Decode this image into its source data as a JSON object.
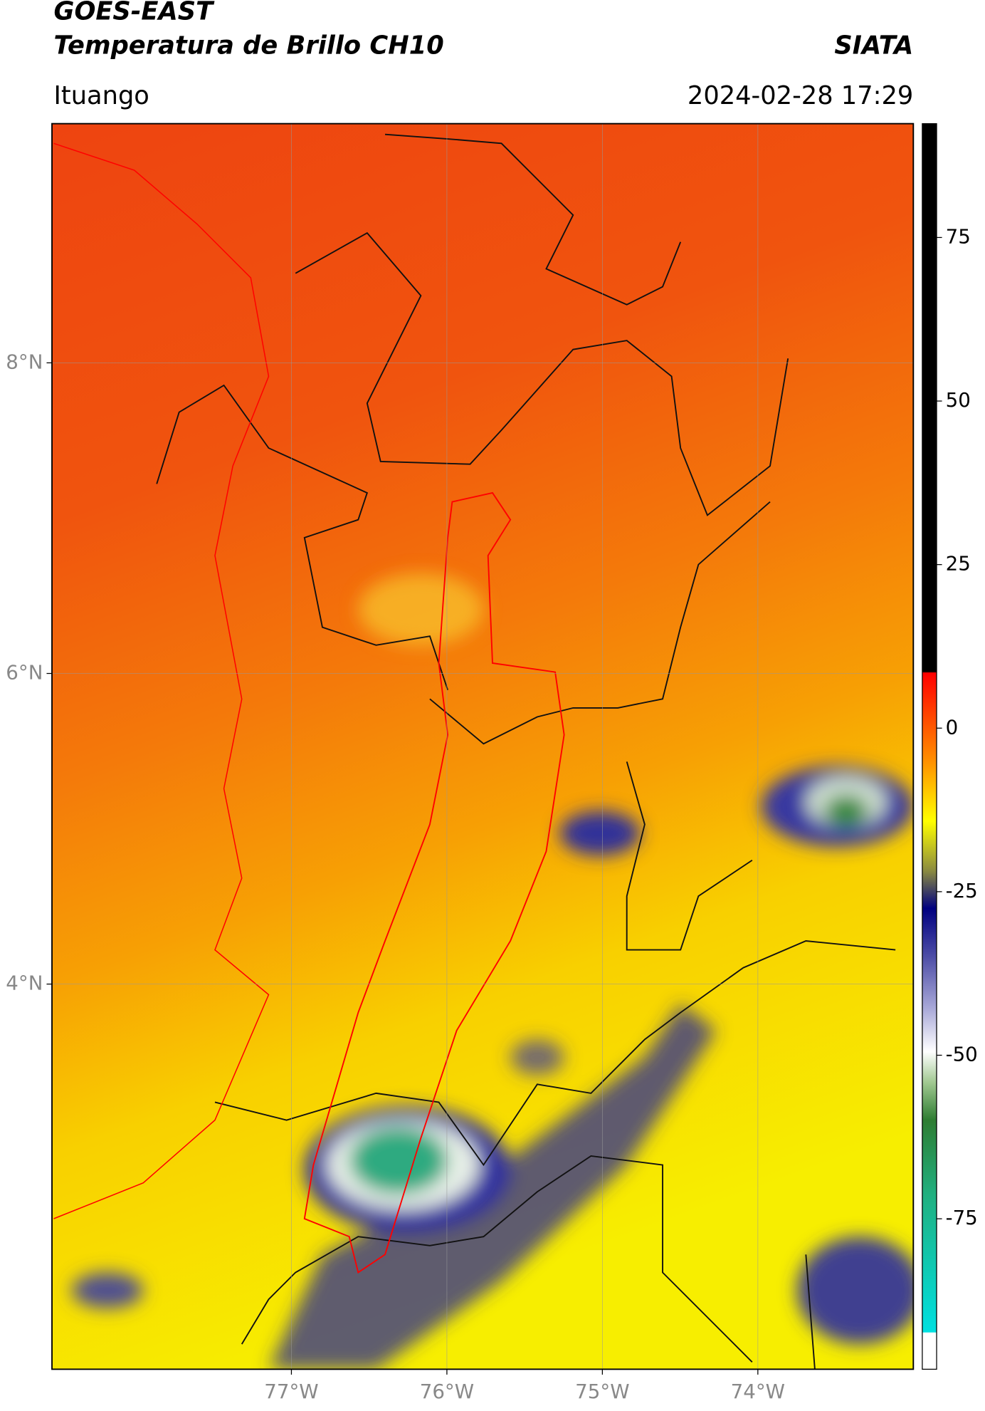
{
  "header": {
    "satellite": "GOES-EAST",
    "product": "Temperatura de Brillo CH10",
    "agency": "SIATA",
    "location": "Ituango",
    "datetime": "2024-02-28 17:29"
  },
  "map": {
    "xlim": [
      -78.54,
      -73.0
    ],
    "ylim": [
      1.52,
      9.54
    ],
    "xticks": [
      {
        "value": -77,
        "label": "77°W"
      },
      {
        "value": -76,
        "label": "76°W"
      },
      {
        "value": -75,
        "label": "75°W"
      },
      {
        "value": -74,
        "label": "74°W"
      }
    ],
    "yticks": [
      {
        "value": 8,
        "label": "8°N"
      },
      {
        "value": 6,
        "label": "6°N"
      },
      {
        "value": 4,
        "label": "4°N"
      }
    ],
    "grid": true
  },
  "colorbar": {
    "lim": [
      -98,
      92.4
    ],
    "ticks": [
      75,
      50,
      25,
      0,
      -25,
      -50,
      -75
    ]
  }
}
